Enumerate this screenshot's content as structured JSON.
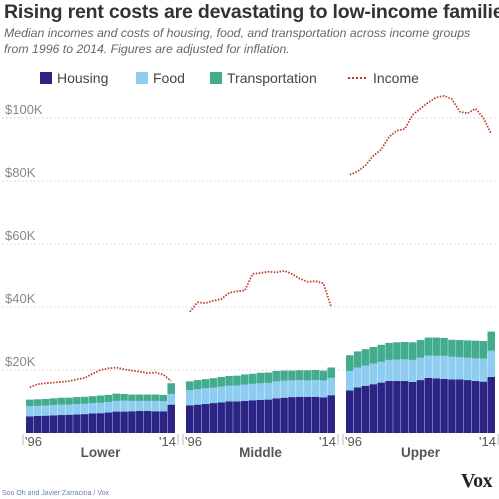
{
  "title": "Rising rent costs are devastating to low-income families",
  "subtitle": "Median incomes and costs of housing, food, and transportation across income groups from 1996 to 2014. Figures are adjusted for inflation.",
  "credit": "Soo Oh and Javier Zarracina / Vox",
  "logo": "Vox",
  "chart_data": {
    "type": "bar",
    "stacked": true,
    "ylim": [
      0,
      110000
    ],
    "y_ticks": [
      20000,
      40000,
      60000,
      80000,
      100000
    ],
    "y_tick_labels": [
      "$20K",
      "$40K",
      "$60K",
      "$80K",
      "$100K"
    ],
    "grid": true,
    "legend_position": "top",
    "legend": [
      {
        "name": "Housing",
        "kind": "bar",
        "color": "#2b2485"
      },
      {
        "name": "Food",
        "kind": "bar",
        "color": "#8ecdf0"
      },
      {
        "name": "Transportation",
        "kind": "bar",
        "color": "#43ab8e"
      },
      {
        "name": "Income",
        "kind": "line",
        "color": "#c0392b"
      }
    ],
    "years": [
      1996,
      1997,
      1998,
      1999,
      2000,
      2001,
      2002,
      2003,
      2004,
      2005,
      2006,
      2007,
      2008,
      2009,
      2010,
      2011,
      2012,
      2013,
      2014
    ],
    "panels": [
      {
        "name": "Lower",
        "x_tick_labels": [
          "'96",
          "'14"
        ],
        "housing": [
          5300,
          5400,
          5500,
          5600,
          5700,
          5800,
          5900,
          6000,
          6200,
          6300,
          6500,
          6800,
          6800,
          6900,
          7000,
          7000,
          6900,
          6900,
          9000
        ],
        "food": [
          3200,
          3200,
          3200,
          3300,
          3300,
          3200,
          3300,
          3300,
          3300,
          3300,
          3300,
          3400,
          3500,
          3300,
          3200,
          3200,
          3300,
          3200,
          3400
        ],
        "transportation": [
          2100,
          2100,
          2100,
          2100,
          2200,
          2200,
          2200,
          2200,
          2200,
          2300,
          2300,
          2300,
          2100,
          2000,
          2000,
          2000,
          2000,
          2000,
          3400
        ],
        "income": [
          14500,
          15500,
          15800,
          16000,
          16200,
          16500,
          17000,
          17500,
          18800,
          20000,
          20500,
          20800,
          20200,
          19800,
          19500,
          19000,
          19200,
          18500,
          16500
        ]
      },
      {
        "name": "Middle",
        "x_tick_labels": [
          "'96",
          "'14"
        ],
        "housing": [
          8800,
          9000,
          9200,
          9500,
          9700,
          10000,
          10000,
          10200,
          10400,
          10500,
          10600,
          11000,
          11200,
          11400,
          11500,
          11500,
          11500,
          11300,
          12000
        ],
        "food": [
          4800,
          4900,
          5000,
          4900,
          5000,
          5000,
          5100,
          5200,
          5200,
          5300,
          5300,
          5400,
          5400,
          5300,
          5300,
          5200,
          5300,
          5400,
          5500
        ],
        "transportation": [
          2800,
          2900,
          2900,
          3000,
          3100,
          3100,
          3100,
          3200,
          3200,
          3300,
          3300,
          3300,
          3200,
          3100,
          3100,
          3200,
          3200,
          3100,
          3300
        ],
        "income": [
          38500,
          41500,
          41200,
          42000,
          42500,
          44500,
          45000,
          45200,
          50500,
          50800,
          51200,
          51000,
          51500,
          50500,
          49000,
          48000,
          48200,
          47500,
          40000
        ]
      },
      {
        "name": "Upper",
        "x_tick_labels": [
          "'96",
          "'14"
        ],
        "housing": [
          13500,
          14500,
          15000,
          15500,
          16000,
          16500,
          16500,
          16500,
          16200,
          16800,
          17500,
          17300,
          17200,
          17000,
          17000,
          16800,
          16500,
          16300,
          17800
        ],
        "food": [
          6200,
          6300,
          6400,
          6500,
          6600,
          6700,
          6800,
          6900,
          7000,
          7100,
          7100,
          7200,
          7300,
          7200,
          7100,
          7100,
          7200,
          7300,
          8300
        ],
        "transportation": [
          5000,
          5100,
          5200,
          5300,
          5400,
          5400,
          5500,
          5500,
          5600,
          5600,
          5700,
          5800,
          5700,
          5400,
          5400,
          5500,
          5600,
          5600,
          6100
        ],
        "income": [
          82000,
          83000,
          85000,
          88000,
          90000,
          94000,
          96000,
          96500,
          101000,
          103000,
          105000,
          106500,
          107000,
          106000,
          102000,
          101500,
          103000,
          100000,
          95000
        ]
      }
    ]
  }
}
